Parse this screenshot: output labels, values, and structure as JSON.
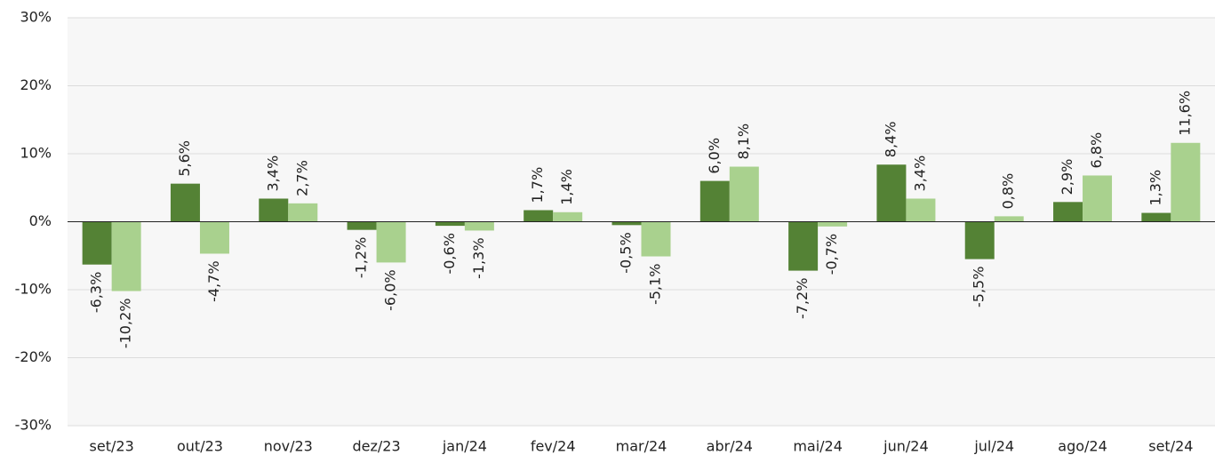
{
  "chart_data": {
    "type": "bar",
    "categories": [
      "set/23",
      "out/23",
      "nov/23",
      "dez/23",
      "jan/24",
      "fev/24",
      "mar/24",
      "abr/24",
      "mai/24",
      "jun/24",
      "jul/24",
      "ago/24",
      "set/24"
    ],
    "series": [
      {
        "color": "#548235",
        "values": [
          -6.3,
          5.6,
          3.4,
          -1.2,
          -0.6,
          1.7,
          -0.5,
          6.0,
          -7.2,
          8.4,
          -5.5,
          2.9,
          1.3
        ],
        "value_labels": [
          "-6,3%",
          "5,6%",
          "3,4%",
          "-1,2%",
          "-0,6%",
          "1,7%",
          "-0,5%",
          "6,0%",
          "-7,2%",
          "8,4%",
          "-5,5%",
          "2,9%",
          "1,3%"
        ]
      },
      {
        "color": "#a9d18e",
        "values": [
          -10.2,
          -4.7,
          2.7,
          -6.0,
          -1.3,
          1.4,
          -5.1,
          8.1,
          -0.7,
          3.4,
          0.8,
          6.8,
          11.6
        ],
        "value_labels": [
          "-10,2%",
          "-4,7%",
          "2,7%",
          "-6,0%",
          "-1,3%",
          "1,4%",
          "-5,1%",
          "8,1%",
          "-0,7%",
          "3,4%",
          "0,8%",
          "6,8%",
          "11,6%"
        ]
      }
    ],
    "ylim": [
      -30,
      30
    ],
    "yticks": [
      {
        "value": -30,
        "label": "-30%"
      },
      {
        "value": -20,
        "label": "-20%"
      },
      {
        "value": -10,
        "label": "-10%"
      },
      {
        "value": 0,
        "label": "0%"
      },
      {
        "value": 10,
        "label": "10%"
      },
      {
        "value": 20,
        "label": "20%"
      },
      {
        "value": 30,
        "label": "30%"
      }
    ],
    "grid": true
  }
}
